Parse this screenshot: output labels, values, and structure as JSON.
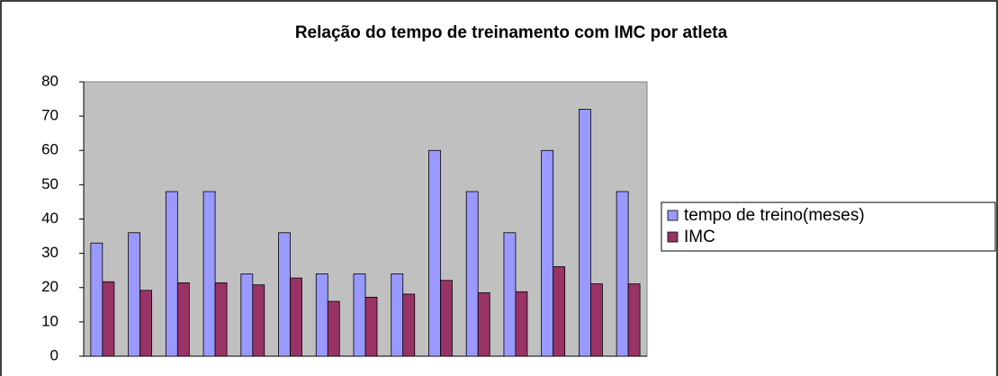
{
  "chart_data": {
    "type": "bar",
    "title": "Relação do tempo de treinamento com IMC por atleta",
    "categories": [
      null,
      null,
      null,
      null,
      null,
      null,
      null,
      null,
      null,
      null,
      null,
      null,
      null,
      null,
      null
    ],
    "series": [
      {
        "name": "tempo de treino(meses)",
        "color": "#9999ff",
        "values": [
          33,
          36,
          48,
          48,
          24,
          36,
          24,
          24,
          24,
          60,
          48,
          36,
          60,
          72,
          48
        ]
      },
      {
        "name": "IMC",
        "color": "#993366",
        "values": [
          21.7,
          19.2,
          21.4,
          21.4,
          20.8,
          22.8,
          16,
          17.2,
          18.1,
          22.1,
          18.5,
          18.8,
          26.1,
          21.1,
          21.1
        ]
      }
    ],
    "ylim": [
      0,
      80
    ],
    "yticks": [
      0,
      10,
      20,
      30,
      40,
      50,
      60,
      70,
      80
    ],
    "legend": "right"
  }
}
